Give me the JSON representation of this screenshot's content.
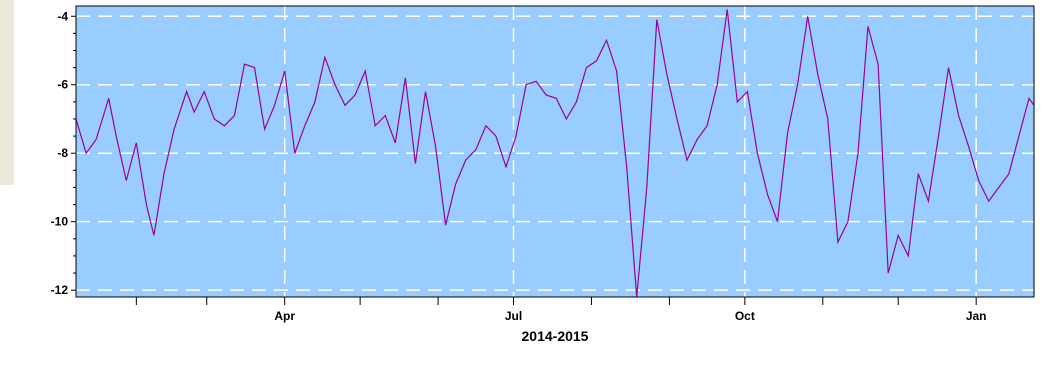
{
  "chart_data": {
    "type": "line",
    "title": "",
    "xlabel": "2014-2015",
    "ylabel": "",
    "x_ticks": [
      "Apr",
      "Jul",
      "Oct",
      "Jan"
    ],
    "y_ticks": [
      "-4",
      "-6",
      "-8",
      "-10",
      "-12"
    ],
    "ylim": [
      -12.2,
      -3.7
    ],
    "xlim": [
      "2015-01-08",
      "2016-01-24"
    ],
    "grid": true,
    "colors": {
      "plot_bg": "#99ccff",
      "line": "#990099",
      "grid": "#ffffff"
    },
    "series": [
      {
        "name": "",
        "x": [
          "2015-01-08",
          "2015-01-12",
          "2015-01-16",
          "2015-01-21",
          "2015-01-24",
          "2015-01-28",
          "2015-02-01",
          "2015-02-05",
          "2015-02-08",
          "2015-02-12",
          "2015-02-16",
          "2015-02-21",
          "2015-02-24",
          "2015-02-28",
          "2015-03-04",
          "2015-03-08",
          "2015-03-12",
          "2015-03-16",
          "2015-03-20",
          "2015-03-24",
          "2015-03-28",
          "2015-04-01",
          "2015-04-05",
          "2015-04-09",
          "2015-04-13",
          "2015-04-17",
          "2015-04-21",
          "2015-04-25",
          "2015-04-29",
          "2015-05-03",
          "2015-05-07",
          "2015-05-11",
          "2015-05-15",
          "2015-05-19",
          "2015-05-23",
          "2015-05-27",
          "2015-05-31",
          "2015-06-04",
          "2015-06-08",
          "2015-06-12",
          "2015-06-16",
          "2015-06-20",
          "2015-06-24",
          "2015-06-28",
          "2015-07-02",
          "2015-07-06",
          "2015-07-10",
          "2015-07-14",
          "2015-07-18",
          "2015-07-22",
          "2015-07-26",
          "2015-07-30",
          "2015-08-03",
          "2015-08-07",
          "2015-08-11",
          "2015-08-15",
          "2015-08-19",
          "2015-08-23",
          "2015-08-27",
          "2015-08-31",
          "2015-09-04",
          "2015-09-08",
          "2015-09-12",
          "2015-09-16",
          "2015-09-20",
          "2015-09-24",
          "2015-09-28",
          "2015-10-02",
          "2015-10-06",
          "2015-10-10",
          "2015-10-14",
          "2015-10-18",
          "2015-10-22",
          "2015-10-26",
          "2015-10-30",
          "2015-11-03",
          "2015-11-07",
          "2015-11-11",
          "2015-11-15",
          "2015-11-19",
          "2015-11-23",
          "2015-11-27",
          "2015-12-01",
          "2015-12-05",
          "2015-12-09",
          "2015-12-13",
          "2015-12-17",
          "2015-12-21",
          "2015-12-25",
          "2015-12-29",
          "2016-01-02",
          "2016-01-06",
          "2016-01-10",
          "2016-01-14",
          "2016-01-18",
          "2016-01-22",
          "2016-01-24"
        ],
        "values": [
          -7.0,
          -8.0,
          -7.6,
          -6.4,
          -7.5,
          -8.8,
          -7.7,
          -9.5,
          -10.4,
          -8.6,
          -7.3,
          -6.2,
          -6.8,
          -6.2,
          -7.0,
          -7.2,
          -6.9,
          -5.4,
          -5.5,
          -7.3,
          -6.6,
          -5.6,
          -8.0,
          -7.2,
          -6.5,
          -5.2,
          -6.0,
          -6.6,
          -6.3,
          -5.6,
          -7.2,
          -6.9,
          -7.7,
          -5.8,
          -8.3,
          -6.2,
          -7.8,
          -10.1,
          -8.9,
          -8.2,
          -7.9,
          -7.2,
          -7.5,
          -8.4,
          -7.5,
          -6.0,
          -5.9,
          -6.3,
          -6.4,
          -7.0,
          -6.5,
          -5.5,
          -5.3,
          -4.7,
          -5.6,
          -8.4,
          -12.2,
          -9.0,
          -4.1,
          -5.7,
          -7.0,
          -8.2,
          -7.6,
          -7.2,
          -6.0,
          -3.8,
          -6.5,
          -6.2,
          -8.0,
          -9.2,
          -10.0,
          -7.4,
          -6.0,
          -4.0,
          -5.7,
          -7.0,
          -10.6,
          -10.0,
          -8.0,
          -4.3,
          -5.4,
          -11.5,
          -10.4,
          -11.0,
          -8.6,
          -9.4,
          -7.5,
          -5.5,
          -6.9,
          -7.8,
          -8.8,
          -9.4,
          -9.0,
          -8.6,
          -7.5,
          -6.4,
          -6.6
        ]
      }
    ]
  }
}
